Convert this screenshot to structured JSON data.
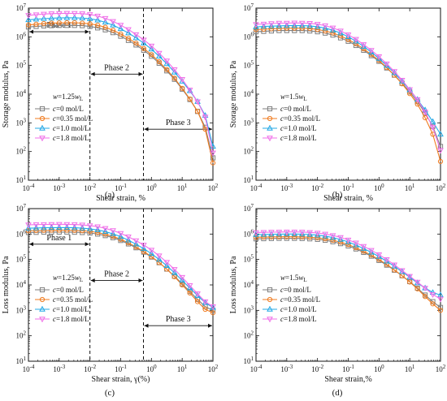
{
  "colors": {
    "c0": "#7f7f7f",
    "c035": "#f07b1f",
    "c10": "#23a8e6",
    "c18": "#f06fe8"
  },
  "chart_data": [
    {
      "type": "line",
      "panel": "a",
      "caption": "(a)",
      "xlabel": "Shear strain, %",
      "ylabel": "Storage modulus, Pa",
      "xscale": "log",
      "yscale": "log",
      "xlim": [
        0.0001,
        100
      ],
      "ylim": [
        10,
        10000000
      ],
      "x_ticks": [
        "10^-4",
        "10^-3",
        "10^-2",
        "10^-1",
        "10^0",
        "10^1",
        "10^2"
      ],
      "y_ticks": [
        "10^1",
        "10^2",
        "10^3",
        "10^4",
        "10^5",
        "10^6",
        "10^7"
      ],
      "legend_title": "w=1.25wL",
      "legend_position": "lower-left",
      "phases": [
        {
          "label": "Phase 1",
          "from": 0.0001,
          "to": 0.01,
          "y": 1500000
        },
        {
          "label": "Phase 2",
          "from": 0.01,
          "to": 0.55,
          "y": 50000
        },
        {
          "label": "Phase 3",
          "from": 0.55,
          "to": 100,
          "y": 600
        }
      ],
      "dividers": [
        0.01,
        0.55
      ],
      "x": [
        0.0001,
        0.000178,
        0.000316,
        0.000562,
        0.001,
        0.00178,
        0.00316,
        0.00562,
        0.01,
        0.0178,
        0.0316,
        0.0562,
        0.1,
        0.178,
        0.316,
        0.562,
        1,
        1.78,
        3.16,
        5.62,
        10,
        17.8,
        31.6,
        56.2,
        100
      ],
      "series": [
        {
          "name": "c=0 mol/L",
          "color_key": "c0",
          "marker": "square",
          "values": [
            2200000,
            2300000,
            2400000,
            2450000,
            2500000,
            2500000,
            2500000,
            2450000,
            2300000,
            2050000,
            1750000,
            1400000,
            1050000,
            750000,
            520000,
            340000,
            210000,
            120000,
            65000,
            33000,
            15000,
            6500,
            2500,
            700,
            60
          ]
        },
        {
          "name": "c=0.35 mol/L",
          "color_key": "c035",
          "marker": "circle",
          "values": [
            2600000,
            2750000,
            2900000,
            3000000,
            3050000,
            3100000,
            3100000,
            3000000,
            2850000,
            2550000,
            2150000,
            1700000,
            1250000,
            880000,
            600000,
            390000,
            240000,
            135000,
            72000,
            36000,
            16000,
            6800,
            2500,
            600,
            40
          ]
        },
        {
          "name": "c=1.0 mol/L",
          "color_key": "c10",
          "marker": "triangle",
          "values": [
            3900000,
            4100000,
            4300000,
            4450000,
            4550000,
            4600000,
            4600000,
            4500000,
            4250000,
            3800000,
            3200000,
            2550000,
            1900000,
            1350000,
            920000,
            600000,
            370000,
            210000,
            115000,
            58000,
            28000,
            13000,
            5500,
            1800,
            150
          ]
        },
        {
          "name": "c=1.8 mol/L",
          "color_key": "c18",
          "marker": "invtriangle",
          "values": [
            5600000,
            5900000,
            6200000,
            6400000,
            6500000,
            6600000,
            6550000,
            6400000,
            6000000,
            5300000,
            4400000,
            3450000,
            2550000,
            1800000,
            1200000,
            780000,
            480000,
            270000,
            145000,
            72000,
            33000,
            14000,
            5500,
            1600,
            90
          ]
        }
      ]
    },
    {
      "type": "line",
      "panel": "b",
      "caption": "(b)",
      "xlabel": "Shear strain, %",
      "ylabel": "Storage modulus, Pa",
      "xscale": "log",
      "yscale": "log",
      "xlim": [
        0.0001,
        100
      ],
      "ylim": [
        10,
        10000000
      ],
      "x_ticks": [
        "10^-4",
        "10^-3",
        "10^-2",
        "10^-1",
        "10^0",
        "10^1",
        "10^2"
      ],
      "y_ticks": [
        "10^1",
        "10^2",
        "10^3",
        "10^4",
        "10^5",
        "10^6",
        "10^7"
      ],
      "legend_title": "w=1.5wL",
      "legend_position": "lower-left",
      "x": [
        0.0001,
        0.000178,
        0.000316,
        0.000562,
        0.001,
        0.00178,
        0.00316,
        0.00562,
        0.01,
        0.0178,
        0.0316,
        0.0562,
        0.1,
        0.178,
        0.316,
        0.562,
        1,
        1.78,
        3.16,
        5.62,
        10,
        17.8,
        31.6,
        56.2,
        100
      ],
      "series": [
        {
          "name": "c=0 mol/L",
          "color_key": "c0",
          "marker": "square",
          "values": [
            1500000,
            1550000,
            1600000,
            1650000,
            1650000,
            1650000,
            1650000,
            1600000,
            1500000,
            1350000,
            1150000,
            920000,
            700000,
            500000,
            340000,
            220000,
            140000,
            82000,
            46000,
            24000,
            12000,
            5500,
            2200,
            750,
            150
          ]
        },
        {
          "name": "c=0.35 mol/L",
          "color_key": "c035",
          "marker": "circle",
          "values": [
            1800000,
            1850000,
            1900000,
            1950000,
            2000000,
            2000000,
            2000000,
            1950000,
            1800000,
            1600000,
            1350000,
            1080000,
            800000,
            570000,
            380000,
            240000,
            150000,
            85000,
            46000,
            23000,
            10500,
            4500,
            1500,
            400,
            45
          ]
        },
        {
          "name": "c=1.0 mol/L",
          "color_key": "c10",
          "marker": "triangle",
          "values": [
            2200000,
            2300000,
            2350000,
            2400000,
            2450000,
            2450000,
            2450000,
            2400000,
            2250000,
            2000000,
            1700000,
            1350000,
            1000000,
            700000,
            460000,
            290000,
            175000,
            100000,
            55000,
            28000,
            14000,
            6500,
            2800,
            1100,
            400
          ]
        },
        {
          "name": "c=1.8 mol/L",
          "color_key": "c18",
          "marker": "invtriangle",
          "values": [
            2700000,
            2800000,
            2900000,
            3000000,
            3000000,
            3050000,
            3000000,
            2950000,
            2750000,
            2450000,
            2050000,
            1600000,
            1180000,
            820000,
            540000,
            340000,
            205000,
            115000,
            62000,
            31000,
            14500,
            6500,
            2400,
            700,
            110
          ]
        }
      ]
    },
    {
      "type": "line",
      "panel": "c",
      "caption": "(c)",
      "xlabel": "Shear strain, γ(%)",
      "ylabel": "Loss modulus, Pa",
      "xscale": "log",
      "yscale": "log",
      "xlim": [
        0.0001,
        100
      ],
      "ylim": [
        10,
        10000000
      ],
      "x_ticks": [
        "10^-4",
        "10^-3",
        "10^-2",
        "10^-1",
        "10^0",
        "10^1",
        "10^2"
      ],
      "y_ticks": [
        "10^1",
        "10^2",
        "10^3",
        "10^4",
        "10^5",
        "10^6",
        "10^7"
      ],
      "legend_title": "w=1.25wL",
      "legend_position": "lower-left",
      "phases": [
        {
          "label": "Phase 1",
          "from": 0.0001,
          "to": 0.01,
          "y": 400000
        },
        {
          "label": "Phase 2",
          "from": 0.01,
          "to": 0.55,
          "y": 15000
        },
        {
          "label": "Phase 3",
          "from": 0.55,
          "to": 100,
          "y": 250
        }
      ],
      "dividers": [
        0.01,
        0.55
      ],
      "x": [
        0.0001,
        0.000178,
        0.000316,
        0.000562,
        0.001,
        0.00178,
        0.00316,
        0.00562,
        0.01,
        0.0178,
        0.0316,
        0.0562,
        0.1,
        0.178,
        0.316,
        0.562,
        1,
        1.78,
        3.16,
        5.62,
        10,
        17.8,
        31.6,
        56.2,
        100
      ],
      "series": [
        {
          "name": "c=0 mol/L",
          "color_key": "c0",
          "marker": "square",
          "values": [
            1150000,
            1170000,
            1190000,
            1200000,
            1200000,
            1200000,
            1180000,
            1150000,
            1100000,
            1000000,
            870000,
            720000,
            560000,
            410000,
            290000,
            195000,
            125000,
            75000,
            42000,
            22000,
            11000,
            5500,
            2700,
            1400,
            1000
          ]
        },
        {
          "name": "c=0.35 mol/L",
          "color_key": "c035",
          "marker": "circle",
          "values": [
            1350000,
            1380000,
            1400000,
            1420000,
            1420000,
            1420000,
            1400000,
            1350000,
            1280000,
            1150000,
            990000,
            810000,
            620000,
            450000,
            310000,
            205000,
            130000,
            76000,
            42000,
            21000,
            10000,
            4800,
            2200,
            1100,
            800
          ]
        },
        {
          "name": "c=1.0 mol/L",
          "color_key": "c10",
          "marker": "triangle",
          "values": [
            1700000,
            1730000,
            1760000,
            1780000,
            1790000,
            1790000,
            1760000,
            1700000,
            1600000,
            1450000,
            1250000,
            1020000,
            790000,
            570000,
            400000,
            265000,
            170000,
            100000,
            57000,
            30000,
            15000,
            7500,
            3800,
            2000,
            1300
          ]
        },
        {
          "name": "c=1.8 mol/L",
          "color_key": "c18",
          "marker": "invtriangle",
          "values": [
            2300000,
            2350000,
            2380000,
            2400000,
            2420000,
            2400000,
            2370000,
            2280000,
            2150000,
            1950000,
            1680000,
            1380000,
            1070000,
            780000,
            550000,
            370000,
            235000,
            140000,
            78000,
            41000,
            20000,
            9500,
            4500,
            2200,
            1400
          ]
        }
      ]
    },
    {
      "type": "line",
      "panel": "d",
      "caption": "(d)",
      "xlabel": "Shear strain,%",
      "ylabel": "Loss modulus, Pa",
      "xscale": "log",
      "yscale": "log",
      "xlim": [
        0.0001,
        100
      ],
      "ylim": [
        10,
        10000000
      ],
      "x_ticks": [
        "10^-4",
        "10^-3",
        "10^-2",
        "10^-1",
        "10^0",
        "10^1",
        "10^2"
      ],
      "y_ticks": [
        "10^1",
        "10^2",
        "10^3",
        "10^4",
        "10^5",
        "10^6",
        "10^7"
      ],
      "legend_title": "w=1.5wL",
      "legend_position": "lower-left",
      "x": [
        0.0001,
        0.000178,
        0.000316,
        0.000562,
        0.001,
        0.00178,
        0.00316,
        0.00562,
        0.01,
        0.0178,
        0.0316,
        0.0562,
        0.1,
        0.178,
        0.316,
        0.562,
        1,
        1.78,
        3.16,
        5.62,
        10,
        17.8,
        31.6,
        56.2,
        100
      ],
      "series": [
        {
          "name": "c=0 mol/L",
          "color_key": "c0",
          "marker": "square",
          "values": [
            650000,
            660000,
            670000,
            680000,
            680000,
            680000,
            670000,
            650000,
            620000,
            570000,
            500000,
            420000,
            340000,
            260000,
            190000,
            135000,
            92000,
            60000,
            38000,
            23000,
            13500,
            7500,
            4000,
            2200,
            1300
          ]
        },
        {
          "name": "c=0.35 mol/L",
          "color_key": "c035",
          "marker": "circle",
          "values": [
            750000,
            760000,
            770000,
            780000,
            780000,
            780000,
            770000,
            750000,
            710000,
            650000,
            570000,
            480000,
            385000,
            290000,
            210000,
            148000,
            100000,
            64000,
            39000,
            23000,
            13000,
            7000,
            3500,
            1800,
            1000
          ]
        },
        {
          "name": "c=1.0 mol/L",
          "color_key": "c10",
          "marker": "triangle",
          "values": [
            950000,
            960000,
            980000,
            990000,
            1000000,
            1000000,
            990000,
            960000,
            910000,
            830000,
            730000,
            610000,
            490000,
            370000,
            270000,
            190000,
            130000,
            85000,
            54000,
            33000,
            20000,
            12000,
            7500,
            5000,
            4000
          ]
        },
        {
          "name": "c=1.8 mol/L",
          "color_key": "c18",
          "marker": "invtriangle",
          "values": [
            1150000,
            1170000,
            1190000,
            1200000,
            1210000,
            1210000,
            1200000,
            1160000,
            1100000,
            1000000,
            880000,
            740000,
            590000,
            450000,
            330000,
            230000,
            155000,
            100000,
            62000,
            37000,
            22000,
            13000,
            7500,
            4200,
            2800
          ]
        }
      ]
    }
  ]
}
